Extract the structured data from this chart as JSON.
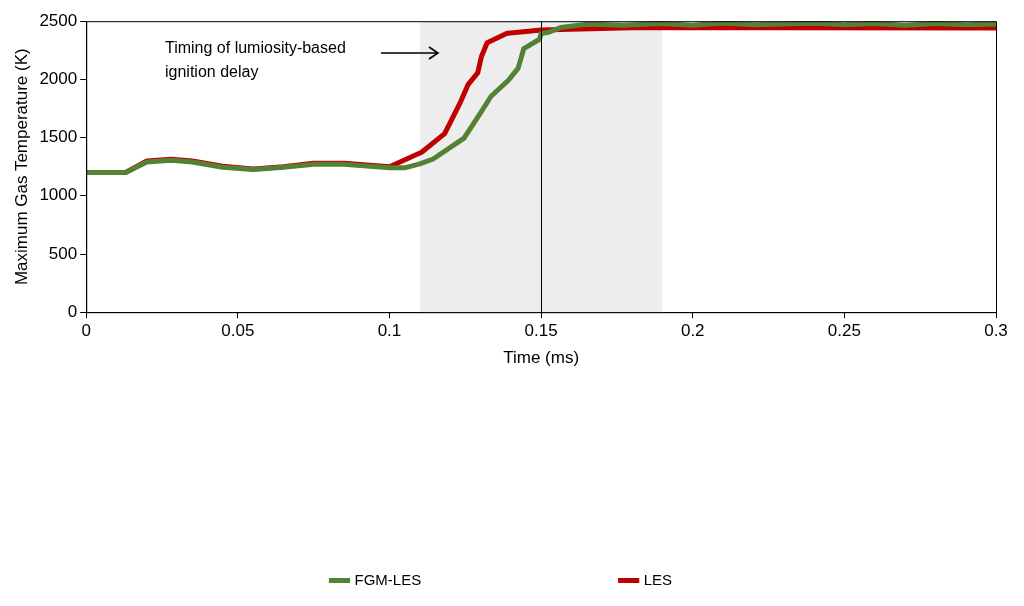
{
  "chart_data": {
    "type": "line",
    "xlabel": "Time (ms)",
    "ylabel": "Maximum Gas Temperature (K)",
    "xlim": [
      0,
      0.3
    ],
    "xticks": [
      0,
      0.05,
      0.1,
      0.15,
      0.2,
      0.25,
      0.3
    ],
    "ylim": [
      0,
      2500
    ],
    "yticks": [
      0,
      500,
      1000,
      1500,
      2000,
      2500
    ],
    "grid": false,
    "legend": "bottom",
    "marker": "none",
    "line_style": "solid",
    "annotations": [
      "Timing of lumiosity-based ignition delay"
    ],
    "bands": [
      {
        "axis": "x",
        "from": 0.11,
        "to": 0.19,
        "color": "#ededed"
      }
    ],
    "ref_lines": [
      {
        "axis": "x",
        "value": 0.15,
        "color": "#000000"
      }
    ],
    "series": [
      {
        "name": "FGM-LES",
        "color": "#548235",
        "x": [
          0,
          0.013,
          0.02,
          0.028,
          0.035,
          0.045,
          0.055,
          0.065,
          0.075,
          0.085,
          0.1,
          0.105,
          0.11,
          0.1144,
          0.1246,
          0.1296,
          0.1335,
          0.1393,
          0.1424,
          0.1443,
          0.1495,
          0.15,
          0.1525,
          0.1564,
          0.1653,
          0.1768,
          0.1896,
          0.2,
          0.21,
          0.22,
          0.23,
          0.24,
          0.25,
          0.26,
          0.27,
          0.28,
          0.29,
          0.3
        ],
        "values": [
          1200,
          1200,
          1290,
          1305,
          1290,
          1245,
          1225,
          1245,
          1270,
          1270,
          1240,
          1240,
          1274,
          1316,
          1495,
          1695,
          1855,
          1995,
          2095,
          2265,
          2345,
          2395,
          2405,
          2445,
          2475,
          2465,
          2480,
          2465,
          2485,
          2470,
          2475,
          2485,
          2470,
          2480,
          2465,
          2480,
          2470,
          2475
        ]
      },
      {
        "name": "LES",
        "color": "#c00000",
        "x": [
          0,
          0.013,
          0.02,
          0.028,
          0.035,
          0.045,
          0.055,
          0.065,
          0.075,
          0.085,
          0.1,
          0.1106,
          0.1182,
          0.1232,
          0.1259,
          0.1291,
          0.1303,
          0.1322,
          0.1386,
          0.15,
          0.1832,
          0.3
        ],
        "values": [
          1200,
          1200,
          1300,
          1315,
          1300,
          1255,
          1230,
          1250,
          1280,
          1280,
          1250,
          1374,
          1534,
          1794,
          1955,
          2056,
          2195,
          2315,
          2395,
          2425,
          2445,
          2442
        ]
      }
    ]
  }
}
